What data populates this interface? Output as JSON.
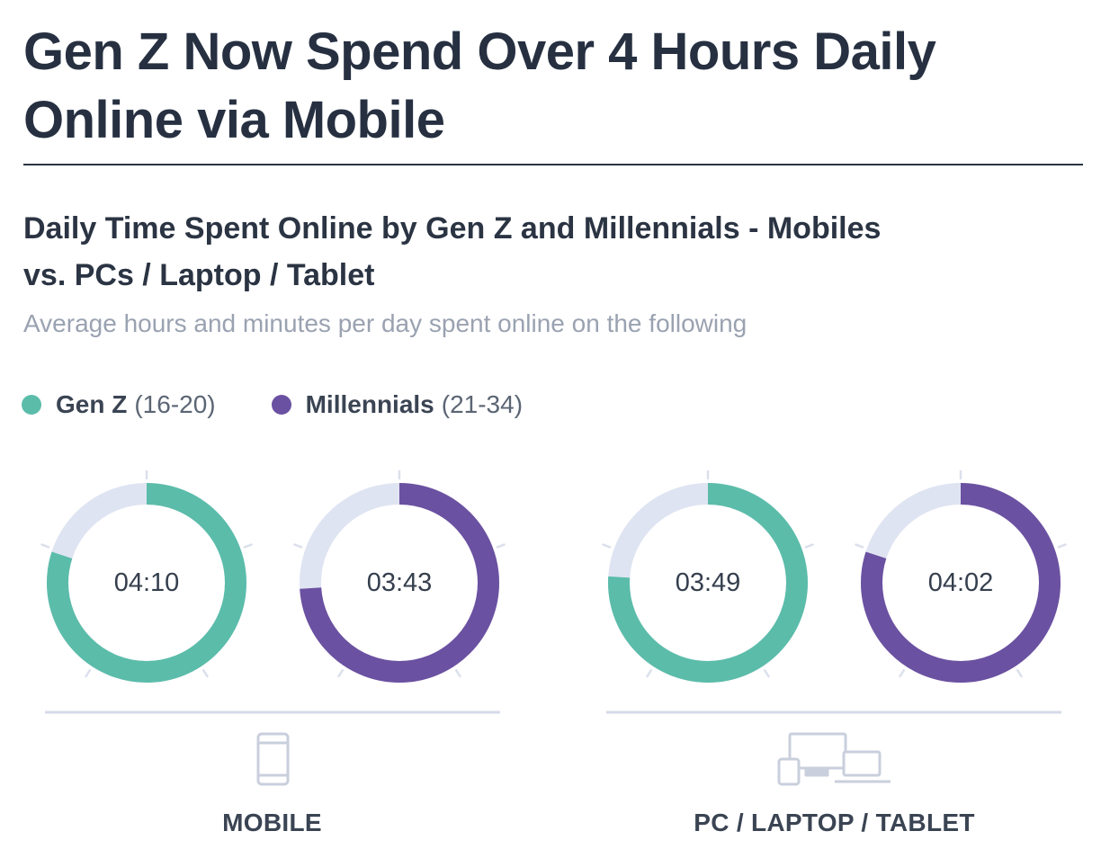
{
  "header": {
    "title": "Gen Z Now Spend Over 4 Hours Daily Online via Mobile"
  },
  "chart_data": {
    "type": "donut",
    "title": "Daily Time Spent Online by Gen Z and Millennials - Mobiles vs. PCs / Laptop / Tablet",
    "subtitle": "Average hours and minutes per day spent online on the following",
    "unit": "hours:minutes per day",
    "legend": [
      {
        "name": "Gen Z",
        "range": "(16-20)",
        "color": "#5bbcaa"
      },
      {
        "name": "Millennials",
        "range": "(21-34)",
        "color": "#6b51a1"
      }
    ],
    "track_color": "#dfe4f2",
    "groups": [
      {
        "label": "MOBILE",
        "icon": "mobile-phone-icon",
        "donuts": [
          {
            "series": "Gen Z",
            "value_label": "04:10",
            "minutes": 250,
            "fraction": 0.8
          },
          {
            "series": "Millennials",
            "value_label": "03:43",
            "minutes": 223,
            "fraction": 0.74
          }
        ]
      },
      {
        "label": "PC / LAPTOP / TABLET",
        "icon": "pc-laptop-tablet-icon",
        "donuts": [
          {
            "series": "Gen Z",
            "value_label": "03:49",
            "minutes": 229,
            "fraction": 0.76
          },
          {
            "series": "Millennials",
            "value_label": "04:02",
            "minutes": 242,
            "fraction": 0.8
          }
        ]
      }
    ]
  }
}
